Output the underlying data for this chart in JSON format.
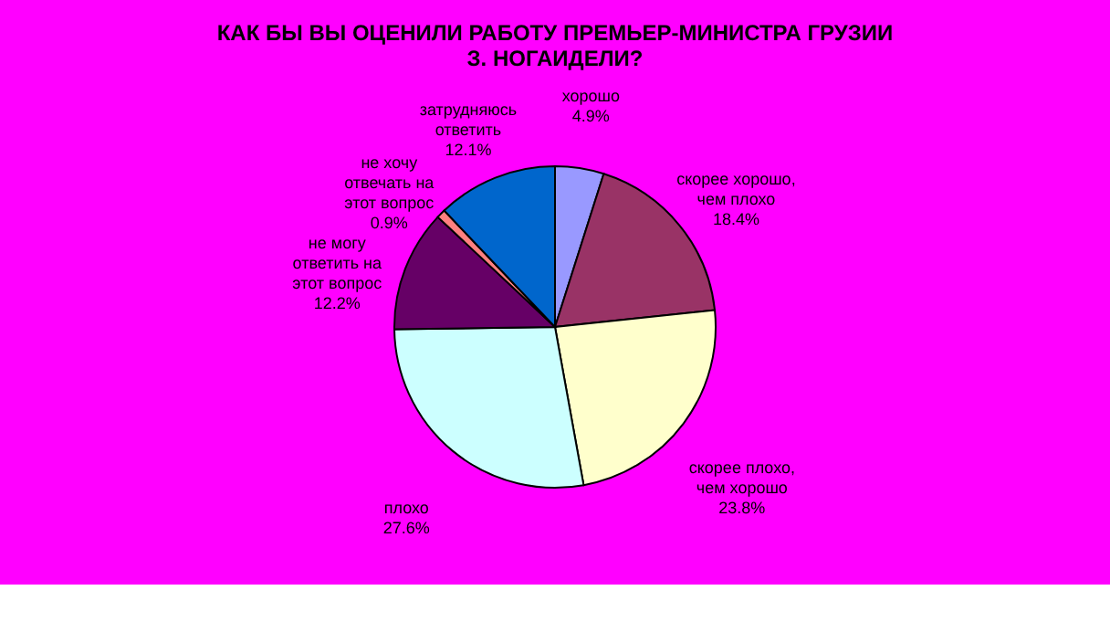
{
  "chart_data": {
    "type": "pie",
    "title": "КАК БЫ ВЫ ОЦЕНИЛИ РАБОТУ ПРЕМЬЕР-МИНИСТРА ГРУЗИИ\nЗ. НОГАИДЕЛИ?",
    "categories": [
      "хорошо",
      "скорее хорошо, чем плохо",
      "скорее плохо, чем хорошо",
      "плохо",
      "не могу ответить на этот вопрос",
      "не хочу отвечать на этот вопрос",
      "затрудняюсь ответить"
    ],
    "values": [
      4.9,
      18.4,
      23.8,
      27.6,
      12.2,
      0.9,
      12.1
    ],
    "value_labels": [
      "4.9%",
      "18.4%",
      "23.8%",
      "27.6%",
      "12.2%",
      "0.9%",
      "12.1%"
    ],
    "colors": [
      "#9999ff",
      "#993366",
      "#ffffcc",
      "#ccffff",
      "#660066",
      "#ff8080",
      "#0066cc"
    ],
    "legend": false
  }
}
